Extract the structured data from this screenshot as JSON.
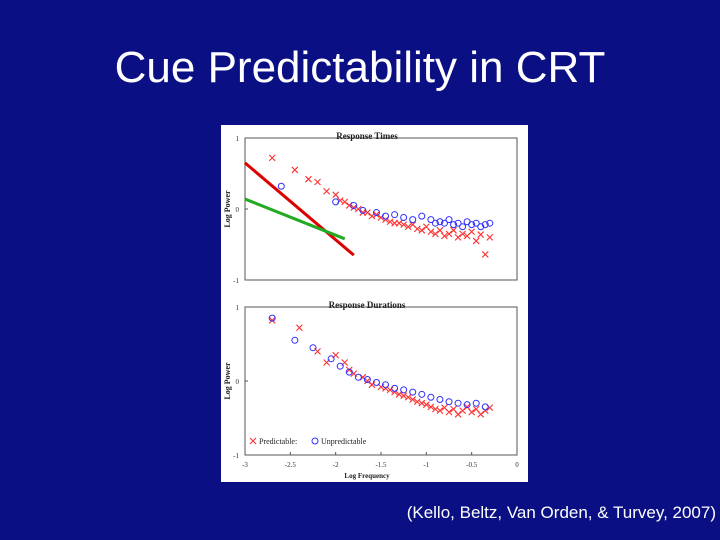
{
  "slide": {
    "title": "Cue Predictability in CRT",
    "citation": "(Kello, Beltz, Van Orden, & Turvey, 2007)"
  },
  "colors": {
    "background": "#0b0f84",
    "predictable": "#ff3030",
    "unpredictable": "#3030ff",
    "fit_red": "#dd0000",
    "fit_green": "#22aa22"
  },
  "chart_data": [
    {
      "type": "scatter",
      "title": "Response Times",
      "ylabel": "Log Power",
      "xlabel": "",
      "xlim": [
        -3,
        0
      ],
      "ylim": [
        -1,
        1
      ],
      "yticks": [
        "1",
        "0",
        "-1"
      ],
      "grid": false,
      "fit_lines": [
        {
          "color": "#dd0000",
          "points": [
            [
              -3.0,
              0.65
            ],
            [
              -1.8,
              -0.65
            ]
          ]
        },
        {
          "color": "#22aa22",
          "points": [
            [
              -3.0,
              0.14
            ],
            [
              -1.9,
              -0.42
            ]
          ]
        }
      ],
      "series": [
        {
          "name": "Predictable",
          "marker": "x",
          "x": [
            -2.7,
            -2.45,
            -2.3,
            -2.2,
            -2.1,
            -2.0,
            -1.95,
            -1.9,
            -1.85,
            -1.8,
            -1.75,
            -1.7,
            -1.65,
            -1.6,
            -1.55,
            -1.5,
            -1.45,
            -1.4,
            -1.35,
            -1.3,
            -1.25,
            -1.2,
            -1.15,
            -1.1,
            -1.05,
            -1.0,
            -0.95,
            -0.9,
            -0.85,
            -0.8,
            -0.75,
            -0.7,
            -0.65,
            -0.6,
            -0.55,
            -0.5,
            -0.45,
            -0.4,
            -0.35,
            -0.3
          ],
          "y": [
            0.72,
            0.55,
            0.42,
            0.38,
            0.25,
            0.2,
            0.12,
            0.1,
            0.05,
            0.02,
            0.0,
            -0.05,
            -0.05,
            -0.1,
            -0.08,
            -0.12,
            -0.15,
            -0.18,
            -0.2,
            -0.2,
            -0.22,
            -0.25,
            -0.22,
            -0.28,
            -0.3,
            -0.25,
            -0.32,
            -0.35,
            -0.3,
            -0.38,
            -0.35,
            -0.3,
            -0.4,
            -0.35,
            -0.38,
            -0.32,
            -0.45,
            -0.36,
            -0.64,
            -0.4
          ]
        },
        {
          "name": "Unpredictable",
          "marker": "o",
          "x": [
            -2.6,
            -2.0,
            -1.8,
            -1.7,
            -1.55,
            -1.45,
            -1.35,
            -1.25,
            -1.15,
            -1.05,
            -0.95,
            -0.9,
            -0.85,
            -0.8,
            -0.75,
            -0.7,
            -0.65,
            -0.6,
            -0.55,
            -0.5,
            -0.45,
            -0.4,
            -0.35,
            -0.3
          ],
          "y": [
            0.32,
            0.1,
            0.05,
            -0.02,
            -0.05,
            -0.1,
            -0.08,
            -0.12,
            -0.15,
            -0.1,
            -0.15,
            -0.2,
            -0.18,
            -0.2,
            -0.15,
            -0.22,
            -0.2,
            -0.25,
            -0.18,
            -0.22,
            -0.2,
            -0.25,
            -0.22,
            -0.2
          ]
        }
      ]
    },
    {
      "type": "scatter",
      "title": "Response Durations",
      "ylabel": "Log Power",
      "xlabel": "Log Frequency",
      "xlim": [
        -3,
        0
      ],
      "ylim": [
        -1,
        1
      ],
      "yticks": [
        "1",
        "0",
        "-1"
      ],
      "xticks": [
        "-3",
        "-2.5",
        "-2",
        "-1.5",
        "-1",
        "-0.5",
        "0"
      ],
      "grid": false,
      "legend": {
        "placement": "bottom-left",
        "predictable_label": "Predictable:",
        "unpredictable_label": "Unpredictable"
      },
      "series": [
        {
          "name": "Predictable",
          "marker": "x",
          "x": [
            -2.7,
            -2.4,
            -2.2,
            -2.1,
            -2.0,
            -1.9,
            -1.85,
            -1.8,
            -1.7,
            -1.65,
            -1.6,
            -1.5,
            -1.45,
            -1.4,
            -1.35,
            -1.3,
            -1.25,
            -1.2,
            -1.15,
            -1.1,
            -1.05,
            -1.0,
            -0.95,
            -0.9,
            -0.85,
            -0.8,
            -0.75,
            -0.7,
            -0.65,
            -0.6,
            -0.55,
            -0.5,
            -0.45,
            -0.4,
            -0.35,
            -0.3
          ],
          "y": [
            0.82,
            0.72,
            0.4,
            0.25,
            0.35,
            0.25,
            0.15,
            0.1,
            0.05,
            0.0,
            -0.05,
            -0.08,
            -0.1,
            -0.12,
            -0.15,
            -0.18,
            -0.2,
            -0.22,
            -0.25,
            -0.28,
            -0.3,
            -0.32,
            -0.35,
            -0.38,
            -0.4,
            -0.36,
            -0.42,
            -0.38,
            -0.45,
            -0.4,
            -0.35,
            -0.42,
            -0.38,
            -0.45,
            -0.4,
            -0.36
          ]
        },
        {
          "name": "Unpredictable",
          "marker": "o",
          "x": [
            -2.7,
            -2.45,
            -2.25,
            -2.05,
            -1.95,
            -1.85,
            -1.75,
            -1.65,
            -1.55,
            -1.45,
            -1.35,
            -1.25,
            -1.15,
            -1.05,
            -0.95,
            -0.85,
            -0.75,
            -0.65,
            -0.55,
            -0.45,
            -0.35
          ],
          "y": [
            0.85,
            0.55,
            0.45,
            0.3,
            0.2,
            0.12,
            0.05,
            0.02,
            -0.02,
            -0.05,
            -0.1,
            -0.12,
            -0.15,
            -0.18,
            -0.22,
            -0.25,
            -0.28,
            -0.3,
            -0.32,
            -0.3,
            -0.35
          ]
        }
      ]
    }
  ]
}
